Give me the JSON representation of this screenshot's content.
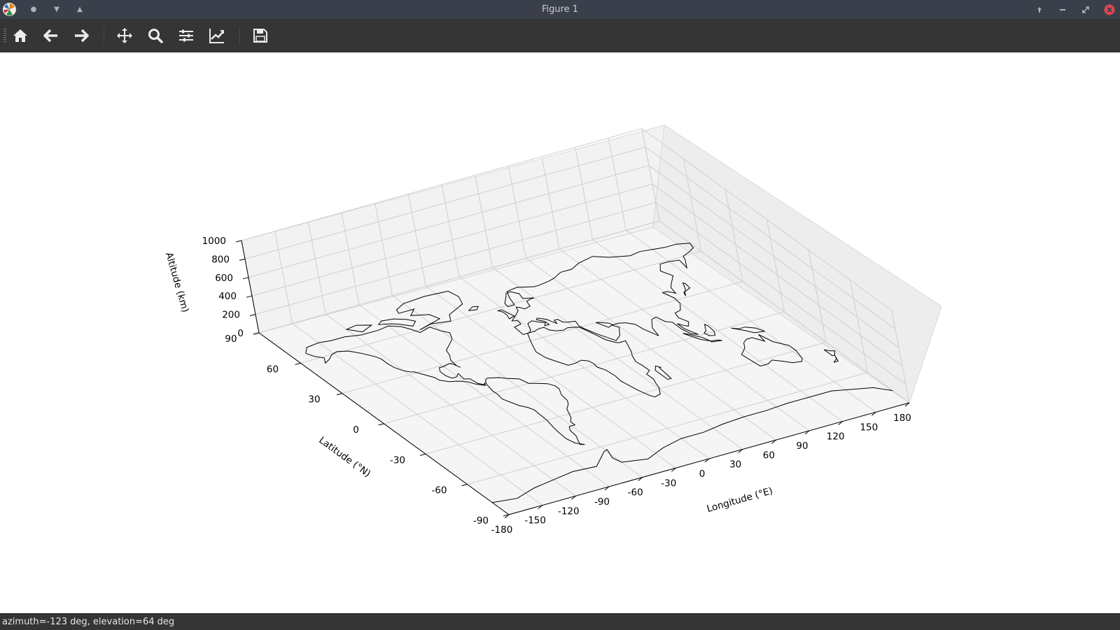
{
  "window": {
    "title": "Figure 1"
  },
  "toolbar": {
    "tools": [
      "home-icon",
      "back-arrow-icon",
      "forward-arrow-icon",
      "pan-icon",
      "zoom-icon",
      "configure-subplots-icon",
      "edit-axis-icon",
      "save-icon"
    ]
  },
  "status": {
    "text": "azimuth=-123 deg, elevation=64 deg"
  },
  "chart_data": {
    "type": "3d-map",
    "title": "",
    "xlabel": "Longitude (°E)",
    "ylabel": "Latitude (°N)",
    "zlabel": "Altitude (km)",
    "xticks": [
      "-180",
      "-150",
      "-120",
      "-90",
      "-60",
      "-30",
      "0",
      "30",
      "60",
      "90",
      "120",
      "150",
      "180"
    ],
    "yticks": [
      "-90",
      "-60",
      "-30",
      "0",
      "30",
      "60",
      "90"
    ],
    "zticks": [
      "0",
      "200",
      "400",
      "600",
      "800",
      "1000"
    ],
    "xlim": [
      -180,
      180
    ],
    "ylim": [
      -90,
      90
    ],
    "zlim": [
      0,
      1000
    ],
    "view": {
      "azimuth": -123,
      "elevation": 64
    },
    "grid": true,
    "content": "world coastline and country borders at altitude 0"
  }
}
